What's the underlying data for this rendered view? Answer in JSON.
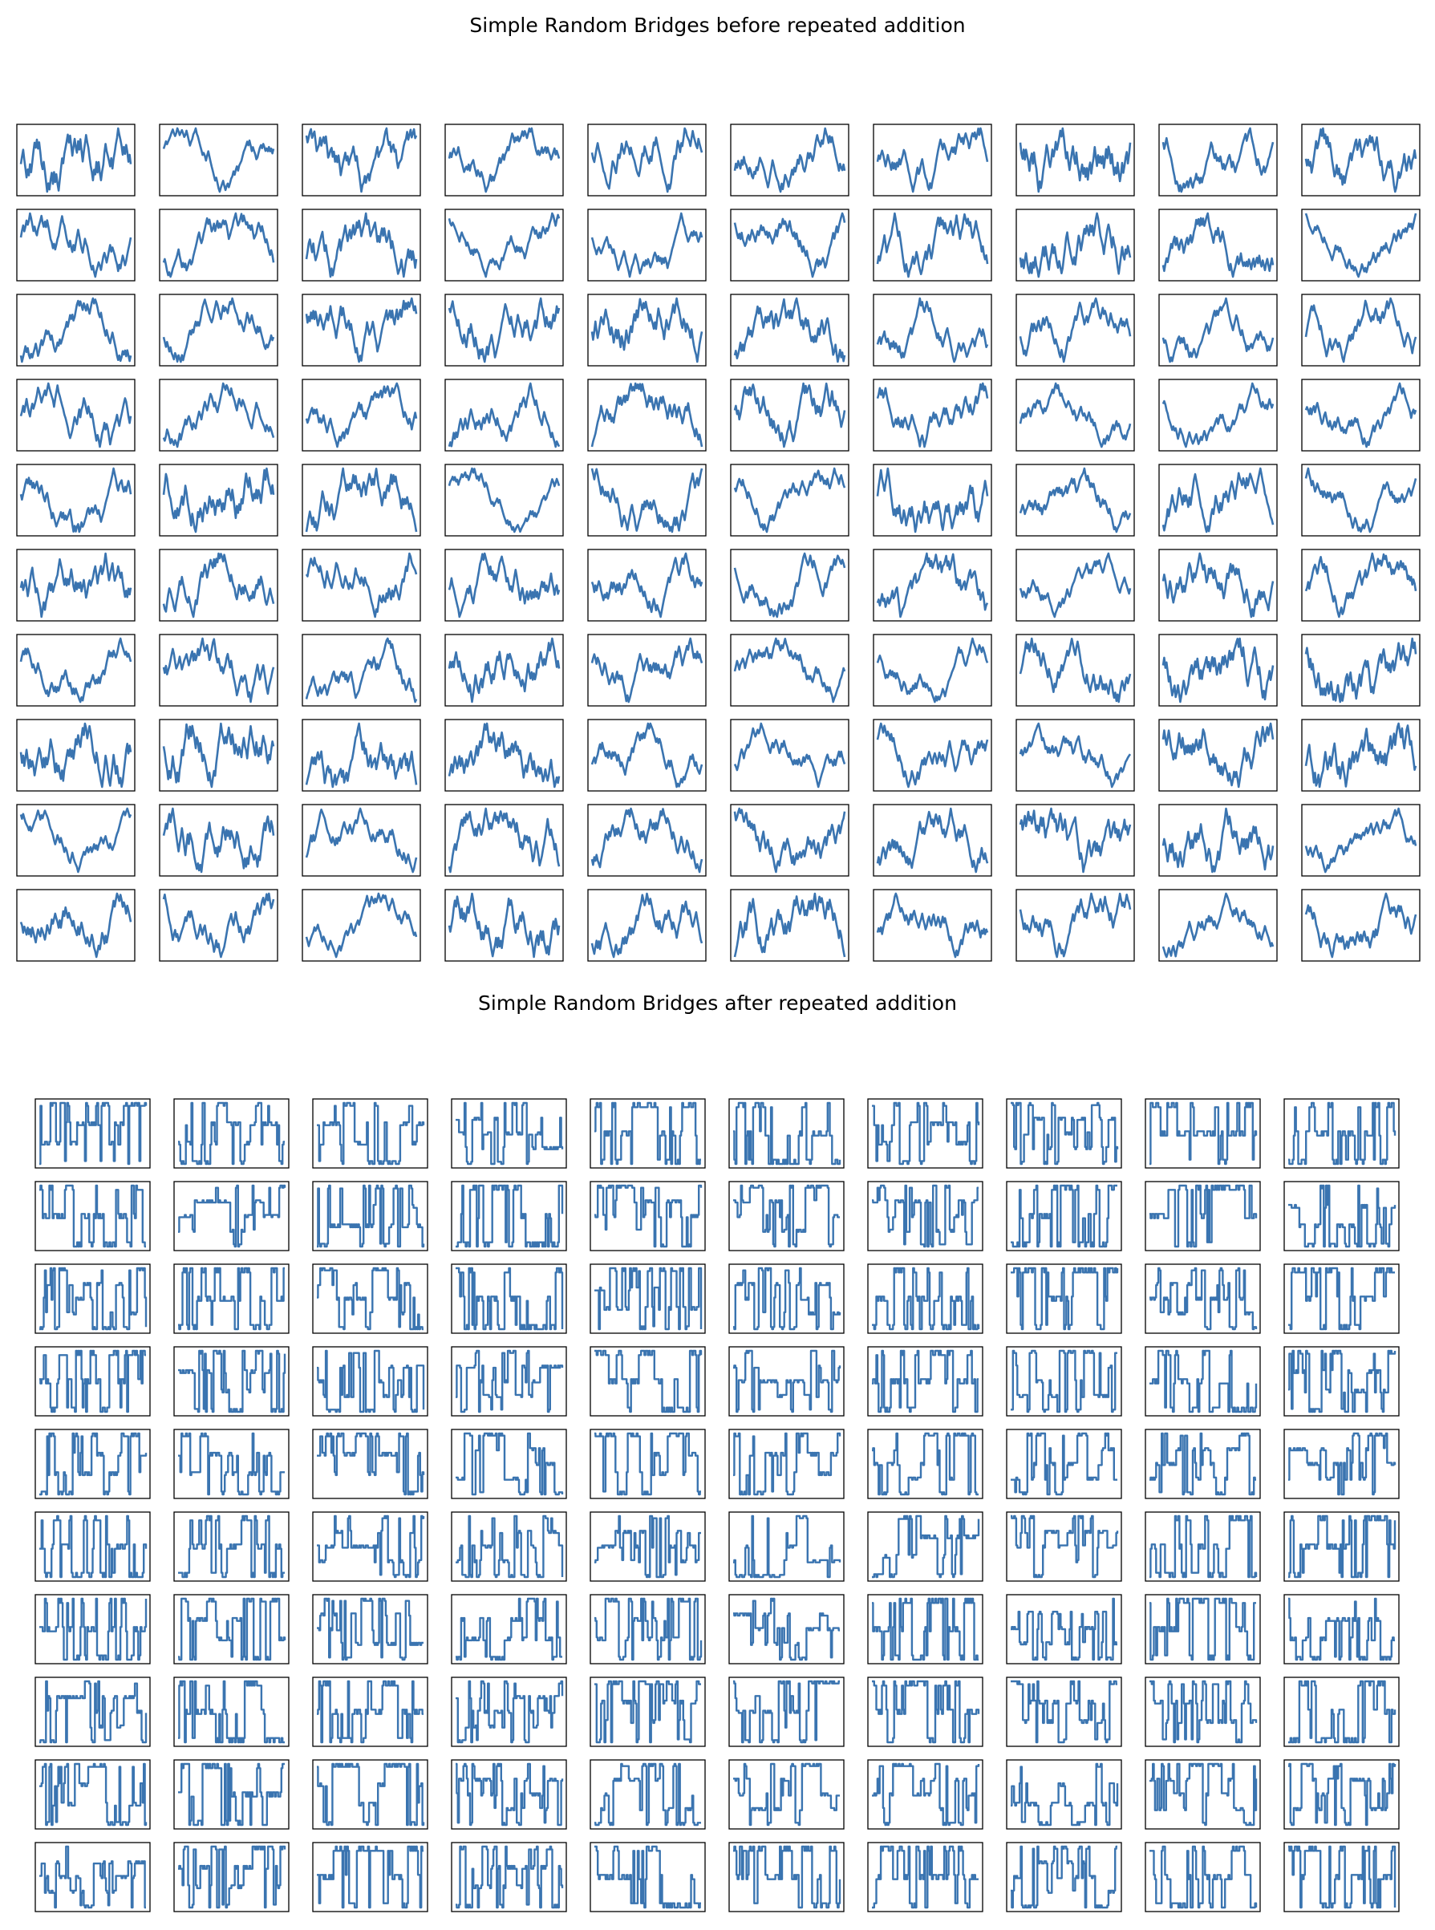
{
  "chart_data": [
    {
      "type": "line",
      "title": "Simple Random Bridges before repeated addition",
      "rows": 10,
      "cols": 10,
      "style": "smooth",
      "seed": 17,
      "steps": 96,
      "line_color": "#3a74b0",
      "axes": "hidden",
      "grid": false
    },
    {
      "type": "line",
      "title": "Simple Random Bridges after repeated addition",
      "rows": 10,
      "cols": 10,
      "style": "binary",
      "seed": 91,
      "steps": 96,
      "line_color": "#3a74b0",
      "axes": "hidden",
      "grid": false
    }
  ]
}
